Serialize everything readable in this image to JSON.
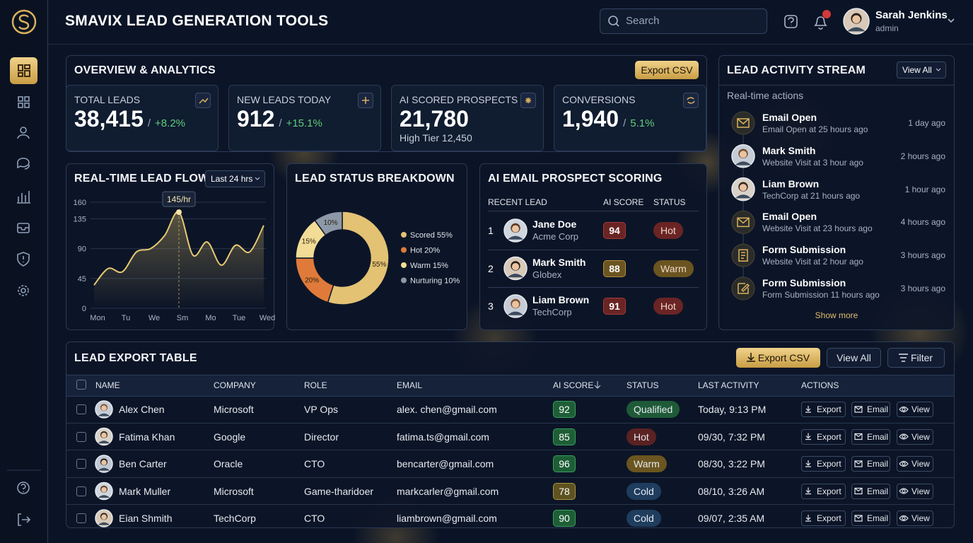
{
  "header": {
    "title": "SMAVIX LEAD GENERATION TOOLS",
    "search_placeholder": "Search",
    "notification_count": 1,
    "user": {
      "name": "Sarah Jenkins",
      "role": "admin"
    }
  },
  "overview": {
    "title": "OVERVIEW & ANALYTICS",
    "export_button": "Export CSV",
    "kpi_separator": "/",
    "kpis": [
      {
        "label": "TOTAL LEADS",
        "value": "38,415",
        "change": "+8.2%"
      },
      {
        "label": "NEW LEADS TODAY",
        "value": "912",
        "change": "+15.1%"
      },
      {
        "label": "AI SCORED PROSPECTS",
        "value": "21,780",
        "detail": "High Tier 12,450"
      },
      {
        "label": "CONVERSIONS",
        "value": "1,940",
        "change": "5.1%"
      }
    ]
  },
  "lead_flow": {
    "type": "line",
    "title": "REAL-TIME LEAD FLOW",
    "range_selector": "Last 24 hrs",
    "color": "#e8c872",
    "grid": true,
    "x": [
      0,
      0.5,
      1,
      1.5,
      2,
      2.5,
      3,
      3.5,
      4,
      4.5,
      5,
      5.5,
      6
    ],
    "values": [
      35,
      60,
      55,
      85,
      90,
      110,
      145,
      80,
      100,
      65,
      95,
      85,
      125
    ],
    "xlim": [
      0,
      6
    ],
    "xticks": [
      {
        "value": 0,
        "label": "Mon"
      },
      {
        "value": 1,
        "label": "Tu"
      },
      {
        "value": 2,
        "label": "We"
      },
      {
        "value": 3,
        "label": "Sm"
      },
      {
        "value": 4,
        "label": "Mo"
      },
      {
        "value": 5,
        "label": "Tue"
      },
      {
        "value": 6,
        "label": "Wed"
      }
    ],
    "ylim": [
      0,
      160
    ],
    "yticks": [
      0,
      45,
      90,
      135,
      160
    ],
    "tooltip": "145/hr"
  },
  "status_breakdown": {
    "type": "pie",
    "title": "LEAD STATUS BREAKDOWN",
    "categories": [
      "Scored",
      "Hot",
      "Warm",
      "Nurturing"
    ],
    "values": [
      55,
      20,
      15,
      10
    ],
    "value_labels": [
      "55%",
      "20%",
      "15%",
      "10%"
    ],
    "colors": [
      "#e3c274",
      "#e07a3a",
      "#f2dc96",
      "#8d99a8"
    ]
  },
  "email_scoring": {
    "title": "AI EMAIL PROSPECT SCORING",
    "columns": [
      "RECENT LEAD",
      "AI SCORE",
      "STATUS"
    ],
    "rows": [
      {
        "rank": 1,
        "name": "Jane Doe",
        "company": "Acme Corp",
        "score": 94,
        "status": "Hot"
      },
      {
        "rank": 2,
        "name": "Mark Smith",
        "company": "Globex",
        "score": 88,
        "status": "Warm"
      },
      {
        "rank": 3,
        "name": "Liam Brown",
        "company": "TechCorp",
        "score": 91,
        "status": "Hot"
      }
    ]
  },
  "activity": {
    "title": "LEAD ACTIVITY STREAM",
    "view_all": "View All",
    "subtitle": "Real-time actions",
    "show_more": "Show more",
    "items": [
      {
        "title": "Email Open",
        "detail": "Email Open at 25 hours ago",
        "time": "1 day ago"
      },
      {
        "title": "Mark Smith",
        "detail": "Website Visit at 3 hour ago",
        "time": "2 hours ago"
      },
      {
        "title": "Liam Brown",
        "detail": "TechCorp at 21 hours ago",
        "time": "1 hour ago"
      },
      {
        "title": "Email Open",
        "detail": "Website Visit at 23 hours ago",
        "time": "4 hours ago"
      },
      {
        "title": "Form Submission",
        "detail": "Website Visit at 2 hour ago",
        "time": "3 hours ago"
      },
      {
        "title": "Form Submission",
        "detail": "Form Submission  11 hours ago",
        "time": "3 hours ago"
      }
    ]
  },
  "export_table": {
    "title": "LEAD EXPORT TABLE",
    "buttons": [
      "Export CSV",
      "View All",
      "Filter"
    ],
    "columns": [
      "NAME",
      "COMPANY",
      "ROLE",
      "EMAIL",
      "AI SCORE",
      "STATUS",
      "LAST ACTIVITY",
      "ACTIONS"
    ],
    "actions": [
      "Export",
      "Email",
      "View"
    ],
    "rows": [
      [
        "Alex Chen",
        "Microsoft",
        "VP Ops",
        "alex. chen@gmail.com",
        92,
        "Qualified",
        "Today, 9:13 PM"
      ],
      [
        "Fatima Khan",
        "Google",
        "Director",
        "fatima.ts@gmail.com",
        85,
        "Hot",
        "09/30, 7:32 PM"
      ],
      [
        "Ben Carter",
        "Oracle",
        "CTO",
        "bencarter@gmail.com",
        96,
        "Warm",
        "08/30, 3:22 PM"
      ],
      [
        "Mark Muller",
        "Microsoft",
        "Game-tharidoer",
        "markcarler@gmail.com",
        78,
        "Cold",
        "08/10, 3:26 AM"
      ],
      [
        "Eian Shmith",
        "TechCorp",
        "CTO",
        "liambrown@gmail.com",
        90,
        "Cold",
        "09/07, 2:35 AM"
      ]
    ]
  }
}
